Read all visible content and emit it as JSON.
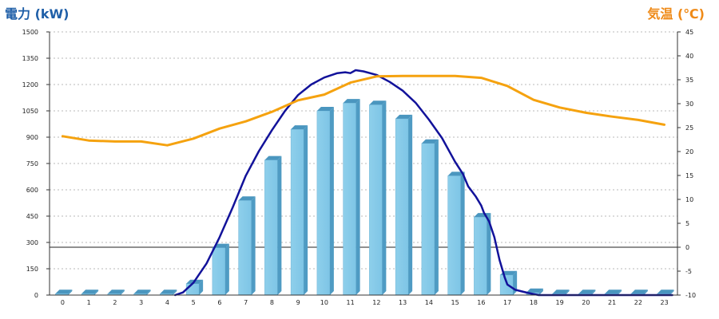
{
  "chart_data": {
    "type": "bar+line",
    "left_axis_label": "電力 (kW)",
    "right_axis_label": "気温 (℃)",
    "categories": [
      "0",
      "1",
      "2",
      "3",
      "4",
      "5",
      "6",
      "7",
      "8",
      "9",
      "10",
      "11",
      "12",
      "13",
      "14",
      "15",
      "16",
      "17",
      "18",
      "19",
      "20",
      "21",
      "22",
      "23"
    ],
    "y_left": {
      "min": 0,
      "max": 1500,
      "ticks": [
        0,
        150,
        300,
        450,
        600,
        750,
        900,
        1050,
        1200,
        1350,
        1500
      ]
    },
    "y_right": {
      "min": -10,
      "max": 45,
      "ticks": [
        -10,
        -5,
        0,
        5,
        10,
        15,
        20,
        25,
        30,
        35,
        40,
        45
      ]
    },
    "grid": true,
    "series": [
      {
        "kind": "bar",
        "axis": "left",
        "values": [
          0,
          0,
          0,
          0,
          0,
          65,
          270,
          540,
          770,
          945,
          1050,
          1095,
          1085,
          1005,
          865,
          680,
          445,
          115,
          15,
          0,
          0,
          0,
          0,
          0
        ]
      },
      {
        "kind": "line",
        "axis": "left",
        "color": "#12129a",
        "points": [
          [
            4.3,
            0
          ],
          [
            4.6,
            15
          ],
          [
            5.0,
            70
          ],
          [
            5.5,
            180
          ],
          [
            6.0,
            330
          ],
          [
            6.5,
            500
          ],
          [
            7.0,
            680
          ],
          [
            7.5,
            820
          ],
          [
            8.0,
            940
          ],
          [
            8.5,
            1050
          ],
          [
            9.0,
            1140
          ],
          [
            9.5,
            1200
          ],
          [
            10.0,
            1240
          ],
          [
            10.5,
            1265
          ],
          [
            10.8,
            1270
          ],
          [
            11.0,
            1265
          ],
          [
            11.2,
            1282
          ],
          [
            11.5,
            1275
          ],
          [
            12.0,
            1255
          ],
          [
            12.5,
            1215
          ],
          [
            13.0,
            1165
          ],
          [
            13.5,
            1095
          ],
          [
            14.0,
            1000
          ],
          [
            14.5,
            895
          ],
          [
            15.0,
            760
          ],
          [
            15.3,
            690
          ],
          [
            15.5,
            620
          ],
          [
            15.8,
            560
          ],
          [
            16.0,
            510
          ],
          [
            16.1,
            470
          ],
          [
            16.3,
            420
          ],
          [
            16.5,
            330
          ],
          [
            16.7,
            200
          ],
          [
            16.9,
            100
          ],
          [
            17.0,
            60
          ],
          [
            17.3,
            30
          ],
          [
            17.8,
            12
          ],
          [
            18.2,
            0
          ],
          [
            23.3,
            0
          ]
        ]
      },
      {
        "kind": "line",
        "axis": "right",
        "color": "#f5a20f",
        "points": [
          [
            0,
            23.2
          ],
          [
            1,
            22.3
          ],
          [
            2,
            22.1
          ],
          [
            3,
            22.1
          ],
          [
            4,
            21.3
          ],
          [
            5,
            22.7
          ],
          [
            6,
            24.8
          ],
          [
            7,
            26.3
          ],
          [
            8,
            28.3
          ],
          [
            9,
            30.7
          ],
          [
            10,
            31.9
          ],
          [
            11,
            34.4
          ],
          [
            12,
            35.7
          ],
          [
            13,
            35.8
          ],
          [
            14,
            35.8
          ],
          [
            15,
            35.8
          ],
          [
            16,
            35.4
          ],
          [
            17,
            33.7
          ],
          [
            18,
            30.8
          ],
          [
            19,
            29.2
          ],
          [
            20,
            28.1
          ],
          [
            21,
            27.3
          ],
          [
            22,
            26.6
          ],
          [
            23,
            25.6
          ]
        ]
      }
    ]
  }
}
